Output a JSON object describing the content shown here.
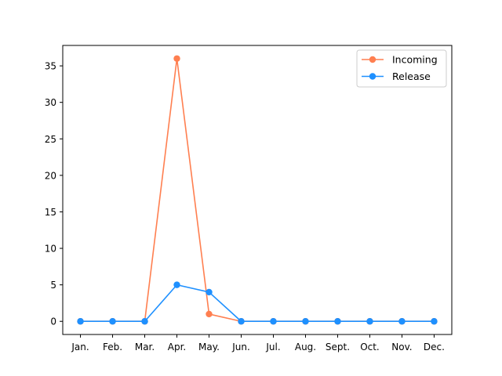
{
  "chart_data": {
    "type": "line",
    "title": "",
    "xlabel": "",
    "ylabel": "",
    "categories": [
      "Jan.",
      "Feb.",
      "Mar.",
      "Apr.",
      "May.",
      "Jun.",
      "Jul.",
      "Aug.",
      "Sept.",
      "Oct.",
      "Nov.",
      "Dec."
    ],
    "ylim": [
      -1.8,
      37.8
    ],
    "yticks": [
      0,
      5,
      10,
      15,
      20,
      25,
      30,
      35
    ],
    "grid": false,
    "legend": "top-right",
    "series": [
      {
        "name": "Incoming",
        "color": "#FF7F50",
        "marker": "circle",
        "values": [
          0,
          0,
          0,
          36,
          1,
          0,
          0,
          0,
          0,
          0,
          0,
          0
        ]
      },
      {
        "name": "Release",
        "color": "#1E90FF",
        "marker": "circle",
        "values": [
          0,
          0,
          0,
          5,
          4,
          0,
          0,
          0,
          0,
          0,
          0,
          0
        ]
      }
    ]
  }
}
